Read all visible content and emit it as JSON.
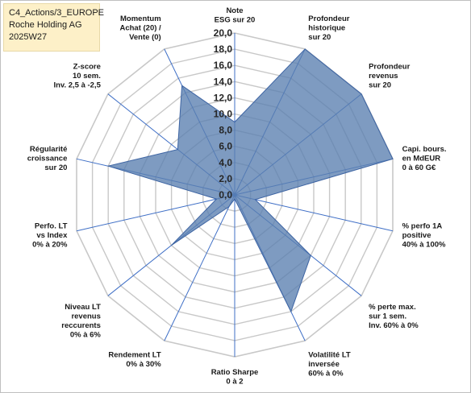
{
  "header": {
    "lines": [
      "C4_Actions/3_EUROPE",
      "Roche Holding AG",
      "2025W27"
    ]
  },
  "chart_data": {
    "type": "radar",
    "title": "",
    "rmin": 0,
    "rmax": 20,
    "rstep": 2,
    "tick_labels": [
      "0,0",
      "2,0",
      "4,0",
      "6,0",
      "8,0",
      "10,0",
      "12,0",
      "14,0",
      "16,0",
      "18,0",
      "20,0"
    ],
    "grid": true,
    "fill_color": "#5a7fb0",
    "fill_opacity": 0.78,
    "stroke_color": "#3d64a3",
    "grid_color": "#c8c8c8",
    "spoke_color": "#3f6fc6",
    "axes": [
      {
        "label": [
          "Note",
          "ESG sur 20"
        ],
        "value": 9.0
      },
      {
        "label": [
          "Profondeur",
          "historique",
          "sur 20"
        ],
        "value": 20.0
      },
      {
        "label": [
          "Profondeur",
          "revenus",
          "sur 20"
        ],
        "value": 20.0
      },
      {
        "label": [
          "Capi. bours.",
          "en MdEUR",
          "0 à 60 G€"
        ],
        "value": 20.0
      },
      {
        "label": [
          "% perfo 1A",
          "positive",
          "40% à 100%"
        ],
        "value": 2.6
      },
      {
        "label": [
          "% perte max.",
          "sur 1 sem.",
          "Inv. 60% à 0%"
        ],
        "value": 12.0
      },
      {
        "label": [
          "Volatilité LT",
          "inversée",
          "60% à 0%"
        ],
        "value": 16.0
      },
      {
        "label": [
          "Ratio Sharpe",
          "0 à 2"
        ],
        "value": 0.5
      },
      {
        "label": [
          "Rendement LT",
          "0% à 30%"
        ],
        "value": 1.6
      },
      {
        "label": [
          "Niveau LT",
          "revenus",
          "reccurents",
          "0% à 6%"
        ],
        "value": 10.0
      },
      {
        "label": [
          "Perfo. LT",
          "vs Index",
          "0% à 20%"
        ],
        "value": 2.3
      },
      {
        "label": [
          "Régularité",
          "croissance",
          "sur 20"
        ],
        "value": 16.0
      },
      {
        "label": [
          "Z-score",
          "10 sem.",
          "Inv. 2,5 à -2,5"
        ],
        "value": 9.0
      },
      {
        "label": [
          "Momentum",
          "Achat (20) /",
          "Vente (0)"
        ],
        "value": 15.0
      }
    ]
  }
}
